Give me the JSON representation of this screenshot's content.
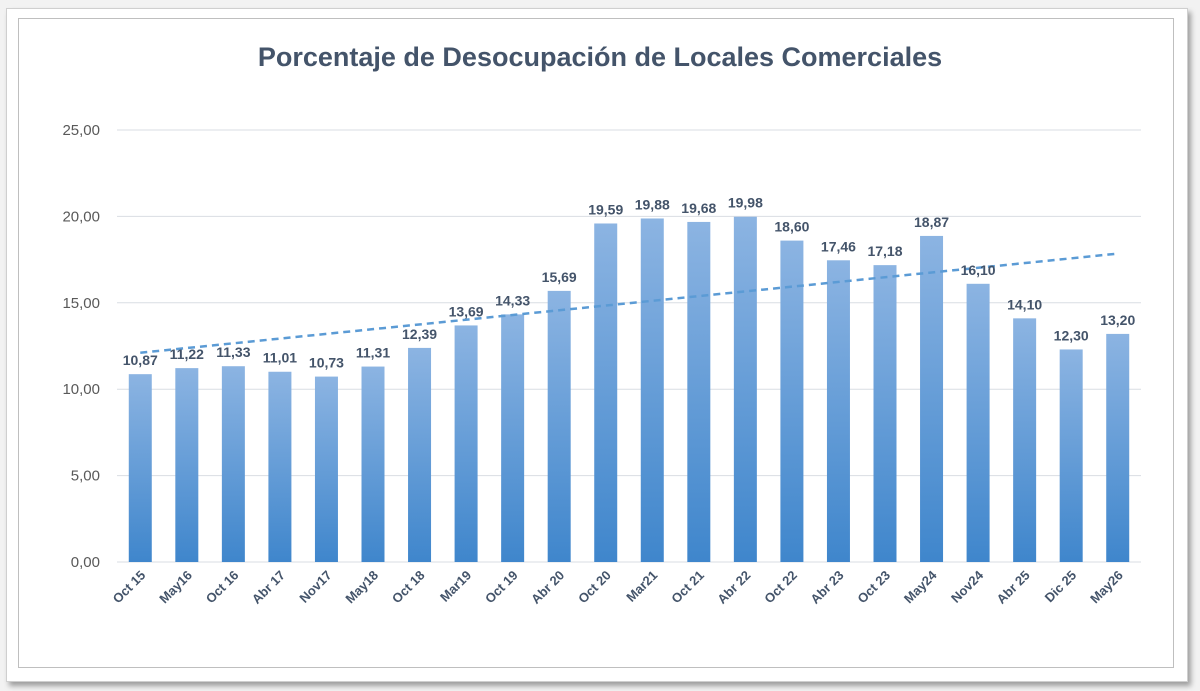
{
  "chart_data": {
    "type": "bar",
    "title": "Porcentaje de Desocupación de Locales Comerciales",
    "categories": [
      "Oct 15",
      "May16",
      "Oct 16",
      "Abr 17",
      "Nov17",
      "May18",
      "Oct 18",
      "Mar19",
      "Oct 19",
      "Abr 20",
      "Oct 20",
      "Mar21",
      "Oct 21",
      "Abr 22",
      "Oct 22",
      "Abr 23",
      "Oct 23",
      "May24",
      "Nov24",
      "Abr 25",
      "Dic 25",
      "May26"
    ],
    "values": [
      10.87,
      11.22,
      11.33,
      11.01,
      10.73,
      11.31,
      12.39,
      13.69,
      14.33,
      15.69,
      19.59,
      19.88,
      19.68,
      19.98,
      18.6,
      17.46,
      17.18,
      18.87,
      16.1,
      14.1,
      12.3,
      13.2
    ],
    "data_labels": [
      "10,87",
      "11,22",
      "11,33",
      "11,01",
      "10,73",
      "11,31",
      "12,39",
      "13,69",
      "14,33",
      "15,69",
      "19,59",
      "19,88",
      "19,68",
      "19,98",
      "18,60",
      "17,46",
      "17,18",
      "18,87",
      "16,10",
      "14,10",
      "12,30",
      "13,20"
    ],
    "y_ticks": [
      "0,00",
      "5,00",
      "10,00",
      "15,00",
      "20,00",
      "25,00"
    ],
    "ylim": [
      0,
      25
    ],
    "grid": true,
    "trendline": {
      "type": "linear",
      "style": "dashed",
      "color": "#5b9bd5"
    },
    "colors": {
      "bar_top": "#8cb4e2",
      "bar_bottom": "#3f86cc",
      "title": "#44546a",
      "grid": "#d9dde3"
    }
  }
}
